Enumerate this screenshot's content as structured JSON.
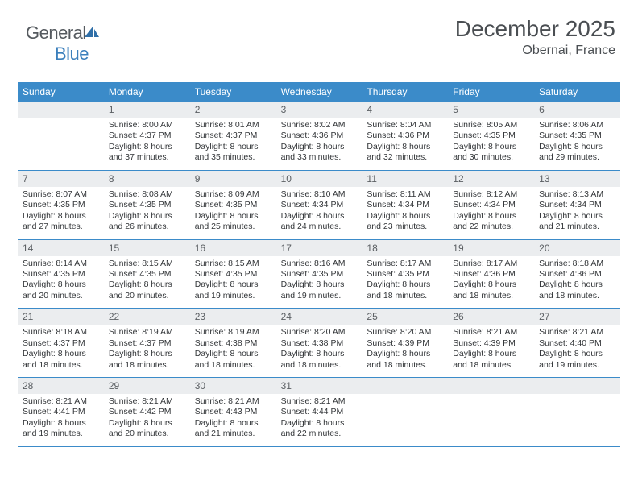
{
  "logo": {
    "part1": "General",
    "part2": "Blue"
  },
  "title": "December 2025",
  "location": "Obernai, France",
  "colors": {
    "header_bg": "#3b8bc9",
    "header_text": "#ffffff",
    "daynum_bg": "#ebedef",
    "daynum_text": "#5b5f63",
    "body_text": "#323538",
    "rule": "#3b8bc9",
    "title_text": "#4a4e52",
    "logo_grey": "#555a5f",
    "logo_blue": "#3b7fbc",
    "page_bg": "#ffffff"
  },
  "day_names": [
    "Sunday",
    "Monday",
    "Tuesday",
    "Wednesday",
    "Thursday",
    "Friday",
    "Saturday"
  ],
  "weeks": [
    [
      null,
      {
        "n": "1",
        "r": "Sunrise: 8:00 AM",
        "s": "Sunset: 4:37 PM",
        "d1": "Daylight: 8 hours",
        "d2": "and 37 minutes."
      },
      {
        "n": "2",
        "r": "Sunrise: 8:01 AM",
        "s": "Sunset: 4:37 PM",
        "d1": "Daylight: 8 hours",
        "d2": "and 35 minutes."
      },
      {
        "n": "3",
        "r": "Sunrise: 8:02 AM",
        "s": "Sunset: 4:36 PM",
        "d1": "Daylight: 8 hours",
        "d2": "and 33 minutes."
      },
      {
        "n": "4",
        "r": "Sunrise: 8:04 AM",
        "s": "Sunset: 4:36 PM",
        "d1": "Daylight: 8 hours",
        "d2": "and 32 minutes."
      },
      {
        "n": "5",
        "r": "Sunrise: 8:05 AM",
        "s": "Sunset: 4:35 PM",
        "d1": "Daylight: 8 hours",
        "d2": "and 30 minutes."
      },
      {
        "n": "6",
        "r": "Sunrise: 8:06 AM",
        "s": "Sunset: 4:35 PM",
        "d1": "Daylight: 8 hours",
        "d2": "and 29 minutes."
      }
    ],
    [
      {
        "n": "7",
        "r": "Sunrise: 8:07 AM",
        "s": "Sunset: 4:35 PM",
        "d1": "Daylight: 8 hours",
        "d2": "and 27 minutes."
      },
      {
        "n": "8",
        "r": "Sunrise: 8:08 AM",
        "s": "Sunset: 4:35 PM",
        "d1": "Daylight: 8 hours",
        "d2": "and 26 minutes."
      },
      {
        "n": "9",
        "r": "Sunrise: 8:09 AM",
        "s": "Sunset: 4:35 PM",
        "d1": "Daylight: 8 hours",
        "d2": "and 25 minutes."
      },
      {
        "n": "10",
        "r": "Sunrise: 8:10 AM",
        "s": "Sunset: 4:34 PM",
        "d1": "Daylight: 8 hours",
        "d2": "and 24 minutes."
      },
      {
        "n": "11",
        "r": "Sunrise: 8:11 AM",
        "s": "Sunset: 4:34 PM",
        "d1": "Daylight: 8 hours",
        "d2": "and 23 minutes."
      },
      {
        "n": "12",
        "r": "Sunrise: 8:12 AM",
        "s": "Sunset: 4:34 PM",
        "d1": "Daylight: 8 hours",
        "d2": "and 22 minutes."
      },
      {
        "n": "13",
        "r": "Sunrise: 8:13 AM",
        "s": "Sunset: 4:34 PM",
        "d1": "Daylight: 8 hours",
        "d2": "and 21 minutes."
      }
    ],
    [
      {
        "n": "14",
        "r": "Sunrise: 8:14 AM",
        "s": "Sunset: 4:35 PM",
        "d1": "Daylight: 8 hours",
        "d2": "and 20 minutes."
      },
      {
        "n": "15",
        "r": "Sunrise: 8:15 AM",
        "s": "Sunset: 4:35 PM",
        "d1": "Daylight: 8 hours",
        "d2": "and 20 minutes."
      },
      {
        "n": "16",
        "r": "Sunrise: 8:15 AM",
        "s": "Sunset: 4:35 PM",
        "d1": "Daylight: 8 hours",
        "d2": "and 19 minutes."
      },
      {
        "n": "17",
        "r": "Sunrise: 8:16 AM",
        "s": "Sunset: 4:35 PM",
        "d1": "Daylight: 8 hours",
        "d2": "and 19 minutes."
      },
      {
        "n": "18",
        "r": "Sunrise: 8:17 AM",
        "s": "Sunset: 4:35 PM",
        "d1": "Daylight: 8 hours",
        "d2": "and 18 minutes."
      },
      {
        "n": "19",
        "r": "Sunrise: 8:17 AM",
        "s": "Sunset: 4:36 PM",
        "d1": "Daylight: 8 hours",
        "d2": "and 18 minutes."
      },
      {
        "n": "20",
        "r": "Sunrise: 8:18 AM",
        "s": "Sunset: 4:36 PM",
        "d1": "Daylight: 8 hours",
        "d2": "and 18 minutes."
      }
    ],
    [
      {
        "n": "21",
        "r": "Sunrise: 8:18 AM",
        "s": "Sunset: 4:37 PM",
        "d1": "Daylight: 8 hours",
        "d2": "and 18 minutes."
      },
      {
        "n": "22",
        "r": "Sunrise: 8:19 AM",
        "s": "Sunset: 4:37 PM",
        "d1": "Daylight: 8 hours",
        "d2": "and 18 minutes."
      },
      {
        "n": "23",
        "r": "Sunrise: 8:19 AM",
        "s": "Sunset: 4:38 PM",
        "d1": "Daylight: 8 hours",
        "d2": "and 18 minutes."
      },
      {
        "n": "24",
        "r": "Sunrise: 8:20 AM",
        "s": "Sunset: 4:38 PM",
        "d1": "Daylight: 8 hours",
        "d2": "and 18 minutes."
      },
      {
        "n": "25",
        "r": "Sunrise: 8:20 AM",
        "s": "Sunset: 4:39 PM",
        "d1": "Daylight: 8 hours",
        "d2": "and 18 minutes."
      },
      {
        "n": "26",
        "r": "Sunrise: 8:21 AM",
        "s": "Sunset: 4:39 PM",
        "d1": "Daylight: 8 hours",
        "d2": "and 18 minutes."
      },
      {
        "n": "27",
        "r": "Sunrise: 8:21 AM",
        "s": "Sunset: 4:40 PM",
        "d1": "Daylight: 8 hours",
        "d2": "and 19 minutes."
      }
    ],
    [
      {
        "n": "28",
        "r": "Sunrise: 8:21 AM",
        "s": "Sunset: 4:41 PM",
        "d1": "Daylight: 8 hours",
        "d2": "and 19 minutes."
      },
      {
        "n": "29",
        "r": "Sunrise: 8:21 AM",
        "s": "Sunset: 4:42 PM",
        "d1": "Daylight: 8 hours",
        "d2": "and 20 minutes."
      },
      {
        "n": "30",
        "r": "Sunrise: 8:21 AM",
        "s": "Sunset: 4:43 PM",
        "d1": "Daylight: 8 hours",
        "d2": "and 21 minutes."
      },
      {
        "n": "31",
        "r": "Sunrise: 8:21 AM",
        "s": "Sunset: 4:44 PM",
        "d1": "Daylight: 8 hours",
        "d2": "and 22 minutes."
      },
      null,
      null,
      null
    ]
  ]
}
